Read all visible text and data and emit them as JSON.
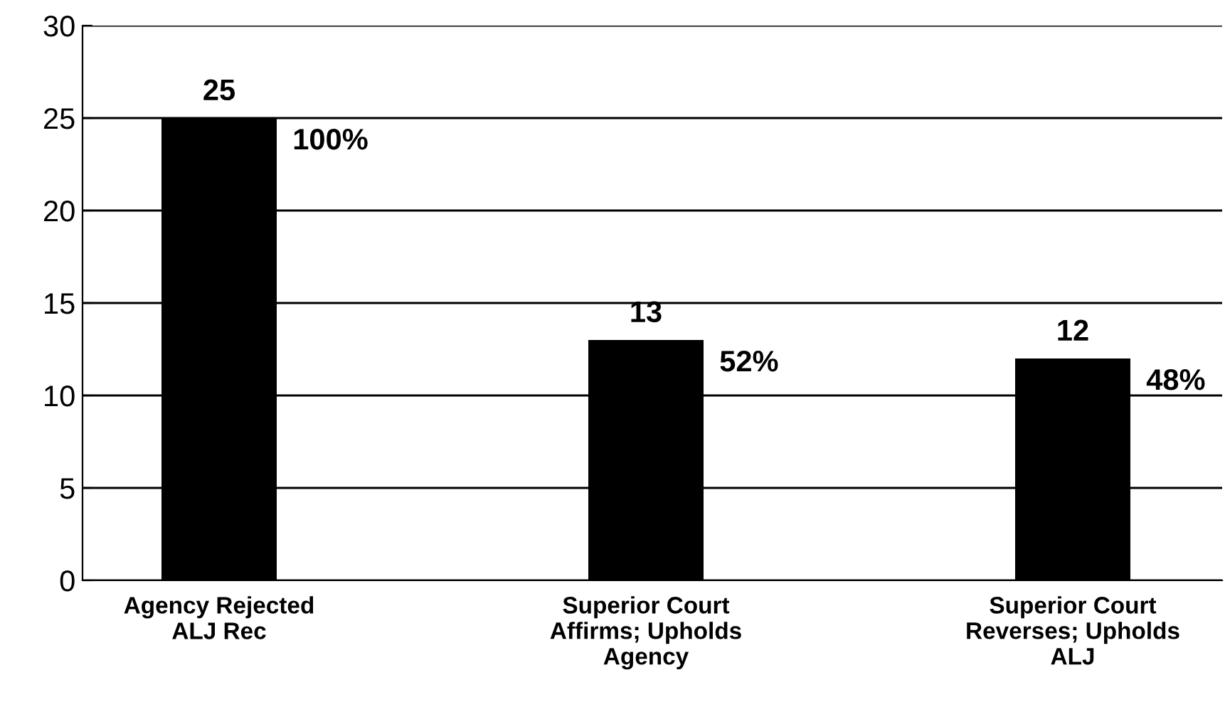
{
  "chart_data": {
    "type": "bar",
    "categories": [
      "Agency Rejected\nALJ Rec",
      "Superior Court\nAffirms; Upholds\nAgency",
      "Superior Court\nReverses; Upholds\nALJ"
    ],
    "values": [
      25,
      13,
      12
    ],
    "color": "#000000",
    "data_labels": true,
    "ylim": [
      0,
      30
    ],
    "yticks": [
      0,
      5,
      10,
      15,
      20,
      25,
      30
    ],
    "grid": "y",
    "annotations": [
      "100%",
      "52%",
      "48%"
    ]
  }
}
